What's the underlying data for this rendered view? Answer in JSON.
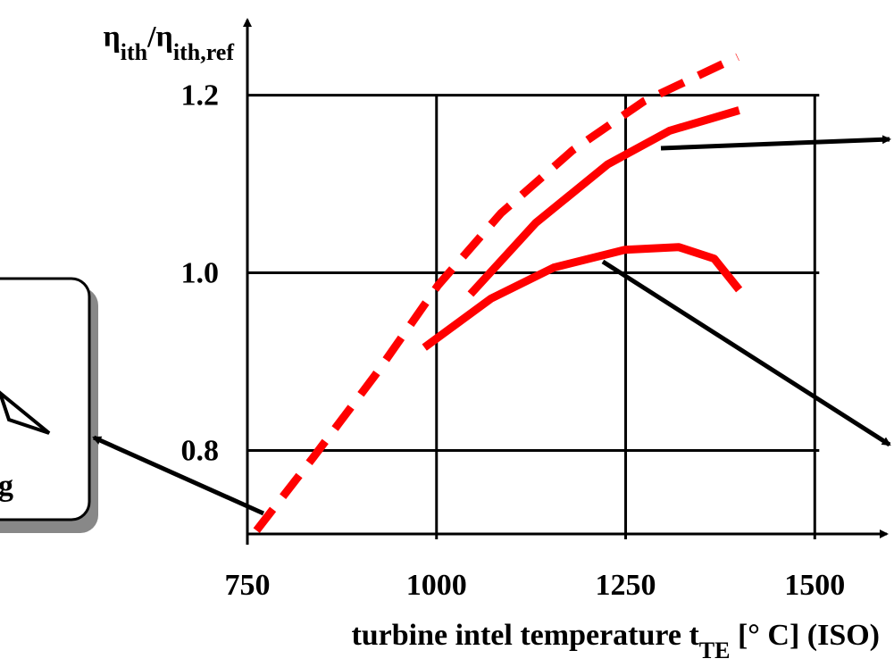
{
  "chart_data": {
    "type": "line",
    "y_label": [
      {
        "text": "η"
      },
      {
        "text": "ith",
        "sub": true
      },
      {
        "text": "/η"
      },
      {
        "text": "ith,ref",
        "sub": true
      }
    ],
    "x_label": [
      {
        "text": "turbine intel temperature t"
      },
      {
        "text": "TE",
        "sub": true
      },
      {
        "text": " [° C] (ISO)"
      }
    ],
    "side_label": "g",
    "xlim": [
      750,
      1600
    ],
    "ylim": [
      0.7,
      1.28
    ],
    "xticks": [
      750,
      1000,
      1250,
      1500
    ],
    "yticks": [
      {
        "value": 0.8,
        "label": "0.8"
      },
      {
        "value": 1.0,
        "label": "1.0"
      },
      {
        "value": 1.2,
        "label": "1.2"
      }
    ],
    "grid": true,
    "series": [
      {
        "color": "#ff0000",
        "dashed": true,
        "x": [
          762,
          836,
          919,
          1002,
          1085,
          1180,
          1274,
          1398
        ],
        "values": [
          0.71,
          0.791,
          0.885,
          0.986,
          1.067,
          1.138,
          1.193,
          1.243
        ]
      },
      {
        "color": "#ff0000",
        "dashed": false,
        "x": [
          1045,
          1131,
          1226,
          1308,
          1400
        ],
        "values": [
          0.976,
          1.056,
          1.122,
          1.16,
          1.183
        ]
      },
      {
        "color": "#ff0000",
        "dashed": false,
        "x": [
          984,
          1072,
          1155,
          1249,
          1320,
          1367,
          1400
        ],
        "values": [
          0.916,
          0.971,
          1.006,
          1.026,
          1.029,
          1.016,
          0.981
        ]
      }
    ]
  }
}
